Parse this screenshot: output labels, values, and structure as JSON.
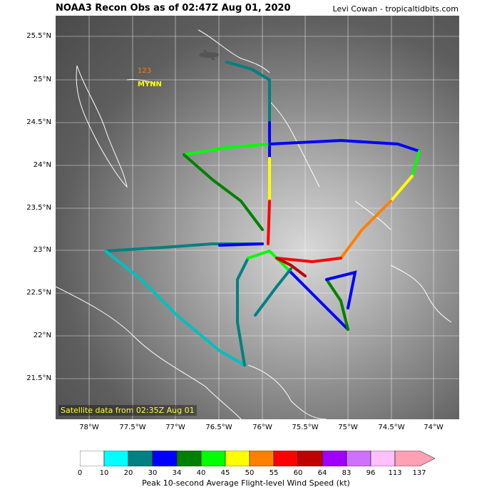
{
  "header": {
    "title": "NOAA3 Recon Obs as of 02:47Z Aug 01, 2020",
    "credit": "Levi Cowan - tropicaltidbits.com"
  },
  "map": {
    "satellite_label": "Satellite data from 02:35Z Aug 01",
    "lat_labels": [
      "25.5°N",
      "25°N",
      "24.5°N",
      "24°N",
      "23.5°N",
      "23°N",
      "22.5°N",
      "22°N",
      "21.5°N"
    ],
    "lon_labels": [
      "78°W",
      "77.5°W",
      "77°W",
      "76.5°W",
      "76°W",
      "75.5°W",
      "75°W",
      "74.5°W",
      "74°W"
    ],
    "annotation_top": "123",
    "annotation_bottom": "MYNN",
    "annotation_top_color": "#ff7f00",
    "annotation_bottom_color": "#ffff00"
  },
  "colorbar": {
    "title": "Peak 10-second Average Flight-level Wind Speed (kt)",
    "ticks": [
      "0",
      "10",
      "20",
      "30",
      "34",
      "40",
      "45",
      "50",
      "55",
      "60",
      "64",
      "83",
      "96",
      "113",
      "137"
    ],
    "colors": [
      "#ffffff",
      "#00ffff",
      "#008080",
      "#0000ff",
      "#008000",
      "#00ff00",
      "#ffff00",
      "#ff8000",
      "#ff0000",
      "#c00000",
      "#a000ff",
      "#d070ff",
      "#ffc0ff",
      "#ffa0b4"
    ]
  }
}
